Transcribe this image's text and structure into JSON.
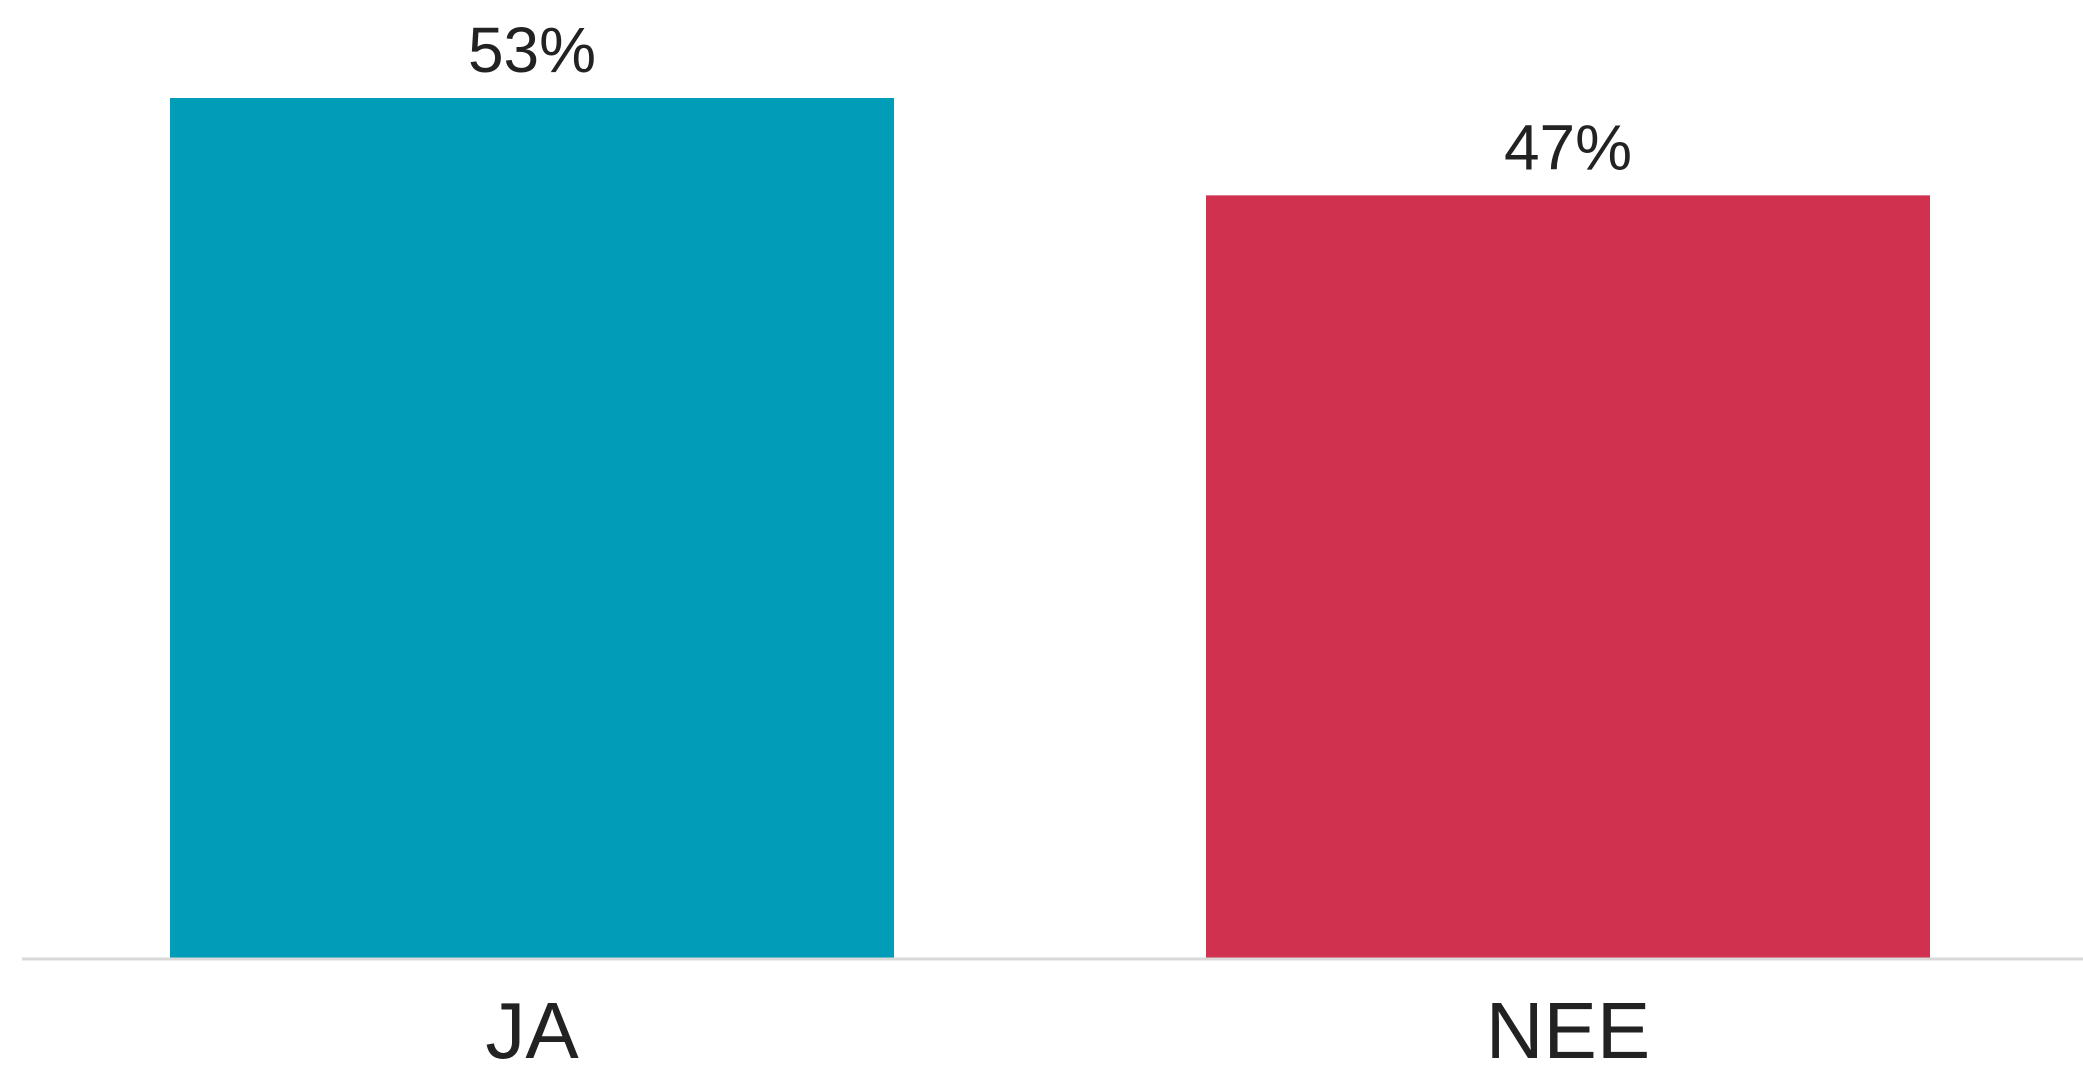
{
  "chart_data": {
    "type": "bar",
    "categories": [
      "JA",
      "NEE"
    ],
    "values": [
      53,
      47
    ],
    "value_labels": [
      "53%",
      "47%"
    ],
    "colors": [
      "#009cb8",
      "#d0314e"
    ],
    "axis_color": "#d9d9d9",
    "ylim": [
      0,
      53
    ],
    "grid": false,
    "legend": "none"
  }
}
